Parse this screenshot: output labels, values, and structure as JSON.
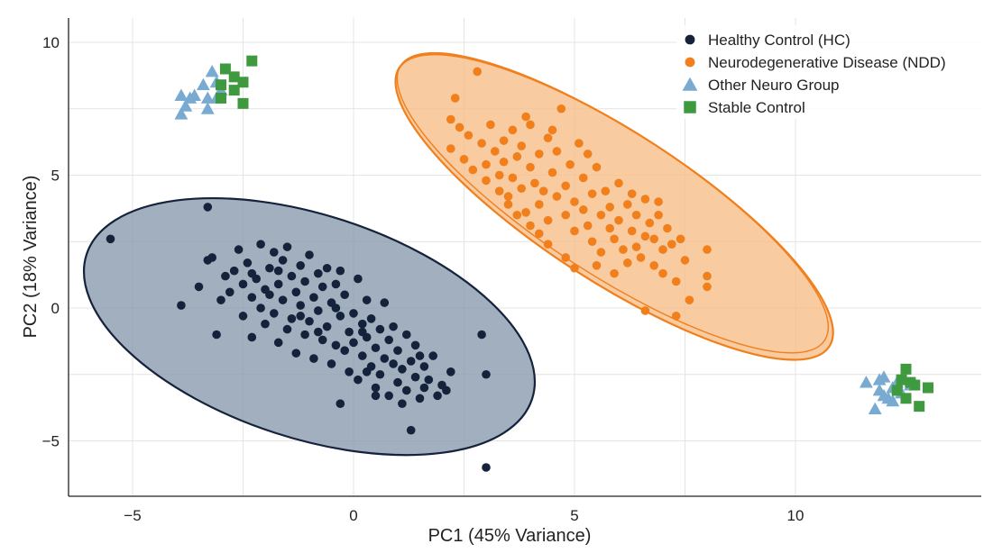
{
  "chart_data": {
    "type": "scatter",
    "title": "",
    "xlabel": "PC1 (45% Variance)",
    "ylabel": "PC2 (18% Variance)",
    "xlim": [
      -6.5,
      13.5
    ],
    "ylim": [
      -7,
      11
    ],
    "x_ticks": [
      -5,
      0,
      5,
      10
    ],
    "y_ticks": [
      -5,
      0,
      5,
      10
    ],
    "x_tick_labels": [
      "−5",
      "0",
      "5",
      "10"
    ],
    "y_tick_labels": [
      "−5",
      "0",
      "5",
      "10"
    ],
    "grid": true,
    "legend_position": "top-right",
    "series": [
      {
        "name": "Healthy Control (HC)",
        "marker": "circle",
        "color": "#14223b",
        "ellipse": {
          "center": [
            -1,
            -0.7
          ],
          "semi_major": 5.3,
          "semi_minor": 4.2,
          "angle_deg": -18,
          "fill": "#8c9db0"
        },
        "points": [
          [
            -5.5,
            2.6
          ],
          [
            -3.3,
            3.8
          ],
          [
            -3.9,
            0.1
          ],
          [
            -3.5,
            0.8
          ],
          [
            -3.3,
            1.8
          ],
          [
            -3.2,
            1.9
          ],
          [
            -3.1,
            -1.0
          ],
          [
            -3.0,
            0.3
          ],
          [
            -2.9,
            1.2
          ],
          [
            -2.8,
            0.6
          ],
          [
            -2.7,
            1.4
          ],
          [
            -2.6,
            2.2
          ],
          [
            -2.5,
            0.9
          ],
          [
            -2.5,
            -0.3
          ],
          [
            -2.4,
            1.7
          ],
          [
            -2.3,
            0.4
          ],
          [
            -2.3,
            -1.1
          ],
          [
            -2.2,
            1.1
          ],
          [
            -2.1,
            2.4
          ],
          [
            -2.1,
            0.0
          ],
          [
            -2.0,
            0.7
          ],
          [
            -2.0,
            -0.6
          ],
          [
            -1.9,
            1.5
          ],
          [
            -1.8,
            2.1
          ],
          [
            -1.8,
            -0.2
          ],
          [
            -1.7,
            0.9
          ],
          [
            -1.7,
            -1.3
          ],
          [
            -1.6,
            1.8
          ],
          [
            -1.6,
            0.3
          ],
          [
            -1.5,
            -0.8
          ],
          [
            -1.5,
            2.3
          ],
          [
            -1.4,
            1.2
          ],
          [
            -1.4,
            -0.4
          ],
          [
            -1.3,
            0.6
          ],
          [
            -1.3,
            -1.7
          ],
          [
            -1.2,
            1.6
          ],
          [
            -1.2,
            0.1
          ],
          [
            -1.1,
            -1.0
          ],
          [
            -1.1,
            1.0
          ],
          [
            -1.0,
            2.0
          ],
          [
            -1.0,
            -0.5
          ],
          [
            -0.9,
            0.4
          ],
          [
            -0.9,
            -1.9
          ],
          [
            -0.8,
            1.3
          ],
          [
            -0.8,
            -0.1
          ],
          [
            -0.7,
            -1.2
          ],
          [
            -0.7,
            0.8
          ],
          [
            -0.6,
            -0.7
          ],
          [
            -0.6,
            1.5
          ],
          [
            -0.5,
            0.2
          ],
          [
            -0.5,
            -2.1
          ],
          [
            -0.4,
            -1.4
          ],
          [
            -0.4,
            0.9
          ],
          [
            -0.3,
            -0.3
          ],
          [
            -0.3,
            1.4
          ],
          [
            -0.2,
            -1.6
          ],
          [
            -0.2,
            0.5
          ],
          [
            -0.1,
            -0.9
          ],
          [
            -0.1,
            -2.4
          ],
          [
            0.0,
            -0.2
          ],
          [
            0.0,
            -1.3
          ],
          [
            0.1,
            1.1
          ],
          [
            0.1,
            -2.7
          ],
          [
            0.2,
            -0.6
          ],
          [
            0.2,
            -1.8
          ],
          [
            0.3,
            0.3
          ],
          [
            0.3,
            -1.1
          ],
          [
            0.4,
            -2.2
          ],
          [
            0.4,
            -0.4
          ],
          [
            0.5,
            -3.0
          ],
          [
            0.5,
            -1.5
          ],
          [
            0.6,
            -0.8
          ],
          [
            0.6,
            -2.5
          ],
          [
            0.7,
            -1.9
          ],
          [
            0.7,
            0.2
          ],
          [
            0.8,
            -1.2
          ],
          [
            0.8,
            -3.3
          ],
          [
            0.9,
            -2.1
          ],
          [
            0.9,
            -0.7
          ],
          [
            1.0,
            -2.8
          ],
          [
            1.0,
            -1.6
          ],
          [
            1.1,
            -3.6
          ],
          [
            1.1,
            -2.3
          ],
          [
            1.2,
            -1.0
          ],
          [
            1.2,
            -3.1
          ],
          [
            1.3,
            -4.6
          ],
          [
            1.3,
            -2.0
          ],
          [
            1.4,
            -2.6
          ],
          [
            1.4,
            -1.4
          ],
          [
            1.5,
            -3.4
          ],
          [
            1.6,
            -2.2
          ],
          [
            1.6,
            -3.0
          ],
          [
            1.7,
            -2.7
          ],
          [
            1.8,
            -1.8
          ],
          [
            1.9,
            -3.3
          ],
          [
            2.0,
            -2.9
          ],
          [
            2.1,
            -3.1
          ],
          [
            2.2,
            -2.4
          ],
          [
            2.9,
            -1.0
          ],
          [
            3.0,
            -2.5
          ],
          [
            3.0,
            -6.0
          ],
          [
            -0.3,
            -3.6
          ],
          [
            0.5,
            -3.3
          ],
          [
            -1.7,
            1.4
          ],
          [
            -2.3,
            1.3
          ],
          [
            -1.9,
            0.5
          ],
          [
            -1.2,
            -0.3
          ],
          [
            -0.4,
            0.0
          ],
          [
            0.2,
            -0.9
          ],
          [
            1.5,
            -1.8
          ],
          [
            0.3,
            -2.4
          ],
          [
            -0.8,
            -0.9
          ]
        ]
      },
      {
        "name": "Neurodegenerative Disease (NDD)",
        "marker": "circle",
        "color": "#f07f1c",
        "ellipse": {
          "center": [
            5.9,
            3.8
          ],
          "semi_major": 5.8,
          "semi_minor": 2.8,
          "angle_deg": -33,
          "fill": "#f6bf8c"
        },
        "points": [
          [
            2.8,
            8.9
          ],
          [
            2.3,
            7.9
          ],
          [
            2.2,
            7.1
          ],
          [
            2.4,
            6.8
          ],
          [
            2.2,
            6.0
          ],
          [
            2.5,
            5.6
          ],
          [
            2.7,
            5.2
          ],
          [
            2.6,
            6.5
          ],
          [
            2.9,
            6.2
          ],
          [
            3.0,
            5.4
          ],
          [
            3.0,
            4.8
          ],
          [
            3.1,
            6.9
          ],
          [
            3.2,
            5.9
          ],
          [
            3.3,
            5.0
          ],
          [
            3.3,
            4.4
          ],
          [
            3.4,
            6.3
          ],
          [
            3.4,
            5.5
          ],
          [
            3.5,
            4.2
          ],
          [
            3.5,
            3.9
          ],
          [
            3.6,
            6.7
          ],
          [
            3.6,
            4.9
          ],
          [
            3.7,
            5.7
          ],
          [
            3.8,
            6.1
          ],
          [
            3.8,
            4.5
          ],
          [
            3.9,
            3.6
          ],
          [
            4.0,
            5.3
          ],
          [
            4.0,
            6.9
          ],
          [
            4.1,
            4.7
          ],
          [
            4.2,
            5.8
          ],
          [
            4.2,
            3.9
          ],
          [
            4.3,
            4.4
          ],
          [
            4.4,
            6.4
          ],
          [
            4.4,
            3.3
          ],
          [
            4.5,
            5.1
          ],
          [
            4.6,
            4.2
          ],
          [
            4.6,
            5.9
          ],
          [
            4.7,
            7.5
          ],
          [
            4.8,
            4.6
          ],
          [
            4.8,
            3.5
          ],
          [
            4.9,
            5.4
          ],
          [
            5.0,
            2.9
          ],
          [
            5.0,
            4.0
          ],
          [
            5.1,
            6.2
          ],
          [
            5.2,
            3.7
          ],
          [
            5.2,
            4.9
          ],
          [
            5.3,
            3.1
          ],
          [
            5.4,
            4.3
          ],
          [
            5.4,
            2.5
          ],
          [
            5.5,
            5.3
          ],
          [
            5.6,
            3.5
          ],
          [
            5.6,
            2.1
          ],
          [
            5.7,
            4.4
          ],
          [
            5.8,
            3.0
          ],
          [
            5.8,
            3.8
          ],
          [
            5.9,
            2.6
          ],
          [
            6.0,
            4.7
          ],
          [
            6.0,
            3.3
          ],
          [
            6.1,
            2.2
          ],
          [
            6.2,
            3.9
          ],
          [
            6.2,
            1.7
          ],
          [
            6.3,
            2.9
          ],
          [
            6.4,
            3.5
          ],
          [
            6.4,
            2.3
          ],
          [
            6.5,
            1.9
          ],
          [
            6.6,
            4.1
          ],
          [
            6.6,
            2.7
          ],
          [
            6.7,
            3.2
          ],
          [
            6.8,
            1.6
          ],
          [
            6.8,
            2.6
          ],
          [
            6.9,
            4.0
          ],
          [
            7.0,
            2.2
          ],
          [
            7.0,
            1.3
          ],
          [
            7.1,
            3.0
          ],
          [
            7.2,
            2.4
          ],
          [
            7.3,
            1.0
          ],
          [
            7.4,
            2.6
          ],
          [
            7.5,
            1.8
          ],
          [
            7.6,
            0.3
          ],
          [
            8.0,
            2.2
          ],
          [
            8.0,
            1.2
          ],
          [
            8.0,
            0.8
          ],
          [
            7.3,
            -0.3
          ],
          [
            6.6,
            -0.1
          ],
          [
            4.4,
            2.4
          ],
          [
            4.8,
            1.9
          ],
          [
            5.5,
            1.6
          ],
          [
            4.0,
            3.1
          ],
          [
            3.7,
            3.5
          ],
          [
            5.3,
            5.8
          ],
          [
            4.5,
            6.7
          ],
          [
            6.3,
            4.3
          ],
          [
            5.9,
            1.3
          ],
          [
            3.9,
            7.2
          ],
          [
            4.2,
            2.8
          ],
          [
            6.9,
            3.5
          ],
          [
            5.0,
            1.5
          ]
        ]
      },
      {
        "name": "Other Neuro Group",
        "marker": "triangle",
        "color": "#79aad1",
        "points": [
          [
            -3.2,
            8.9
          ],
          [
            -3.4,
            8.4
          ],
          [
            -3.6,
            8.0
          ],
          [
            -3.3,
            7.9
          ],
          [
            -3.8,
            7.6
          ],
          [
            -3.9,
            7.3
          ],
          [
            -3.1,
            8.5
          ],
          [
            -3.1,
            7.9
          ],
          [
            -3.3,
            7.5
          ],
          [
            -3.7,
            7.9
          ],
          [
            -3.9,
            8.0
          ],
          [
            -3.0,
            8.2
          ],
          [
            11.6,
            -2.8
          ],
          [
            11.9,
            -3.1
          ],
          [
            12.0,
            -2.6
          ],
          [
            12.1,
            -3.4
          ],
          [
            12.2,
            -3.0
          ],
          [
            11.8,
            -3.8
          ],
          [
            12.3,
            -2.8
          ],
          [
            12.0,
            -3.3
          ],
          [
            12.2,
            -3.5
          ],
          [
            12.4,
            -3.2
          ],
          [
            12.6,
            -2.9
          ],
          [
            11.9,
            -2.7
          ]
        ]
      },
      {
        "name": "Stable Control",
        "marker": "square",
        "color": "#3f9a3f",
        "points": [
          [
            -2.3,
            9.3
          ],
          [
            -2.9,
            9.0
          ],
          [
            -2.7,
            8.7
          ],
          [
            -2.5,
            8.5
          ],
          [
            -3.0,
            8.4
          ],
          [
            -2.7,
            8.2
          ],
          [
            -3.0,
            7.9
          ],
          [
            -2.5,
            7.7
          ],
          [
            12.5,
            -2.3
          ],
          [
            12.6,
            -2.8
          ],
          [
            12.3,
            -3.1
          ],
          [
            12.5,
            -3.4
          ],
          [
            12.8,
            -3.7
          ],
          [
            13.0,
            -3.0
          ],
          [
            12.7,
            -2.9
          ],
          [
            12.4,
            -2.7
          ]
        ]
      }
    ]
  }
}
